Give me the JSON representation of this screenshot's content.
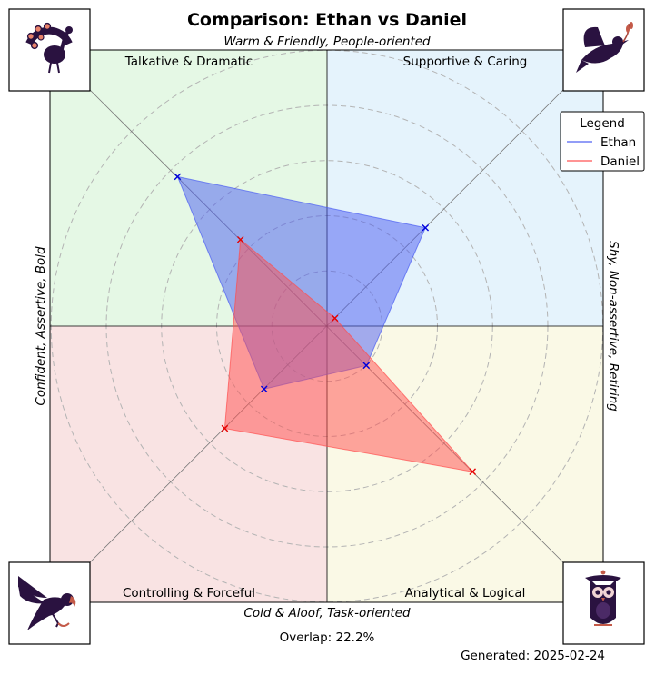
{
  "chart_data": {
    "type": "radar",
    "title": "Comparison: Ethan vs Daniel",
    "axis_labels": {
      "top": "Warm & Friendly, People-oriented",
      "bottom": "Cold & Aloof, Task-oriented",
      "left": "Confident, Assertive, Bold",
      "right": "Shy, Non-assertive, Retiring"
    },
    "quadrants": [
      {
        "name": "Talkative & Dramatic",
        "color": "#e5f8e5",
        "icon": "peacock-icon"
      },
      {
        "name": "Supportive & Caring",
        "color": "#e5f3fc",
        "icon": "dove-icon"
      },
      {
        "name": "Controlling & Forceful",
        "color": "#f9e3e3",
        "icon": "eagle-icon"
      },
      {
        "name": "Analytical & Logical",
        "color": "#faf9e6",
        "icon": "owl-icon"
      }
    ],
    "categories": [
      "Talkative & Dramatic",
      "Supportive & Caring",
      "Analytical & Logical",
      "Controlling & Forceful"
    ],
    "r_max": 5,
    "rings": [
      1,
      2,
      3,
      4,
      5
    ],
    "grid": true,
    "series": [
      {
        "name": "Ethan",
        "color": "#0000dd",
        "fill": "#4a5cf2",
        "values": [
          3.8,
          2.5,
          1.0,
          1.6
        ]
      },
      {
        "name": "Daniel",
        "color": "#e60000",
        "fill": "#ff4d4d",
        "values": [
          2.2,
          0.2,
          3.7,
          2.6
        ]
      }
    ],
    "legend": {
      "title": "Legend",
      "placement": "top-right"
    },
    "overlap_label": "Overlap: 22.2%",
    "generated_label": "Generated: 2025-02-24"
  }
}
